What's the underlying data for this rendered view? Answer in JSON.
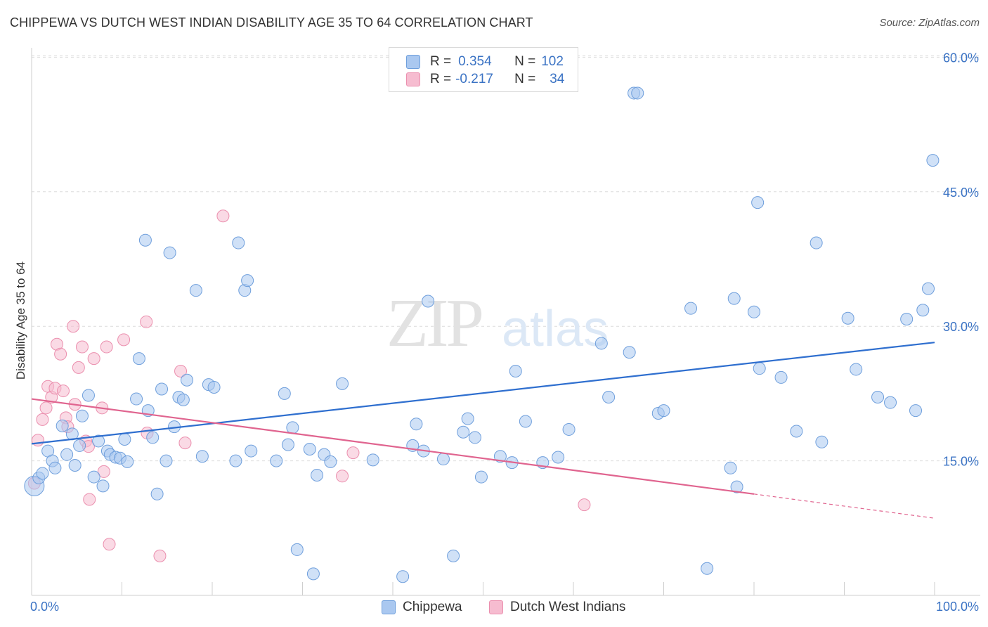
{
  "header": {
    "title": "CHIPPEWA VS DUTCH WEST INDIAN DISABILITY AGE 35 TO 64 CORRELATION CHART",
    "source": "Source: ZipAtlas.com"
  },
  "watermark": {
    "zip": "ZIP",
    "atlas": "atlas"
  },
  "legend_top": {
    "rows": [
      {
        "r_label": "R =",
        "r_value": "0.354",
        "n_label": "N =",
        "n_value": "102"
      },
      {
        "r_label": "R =",
        "r_value": "-0.217",
        "n_label": "N =",
        "n_value": "34"
      }
    ]
  },
  "legend_bottom": {
    "items": [
      "Chippewa",
      "Dutch West Indians"
    ]
  },
  "colors": {
    "blue_fill": "#aac8f0",
    "blue_stroke": "#6f9fdc",
    "blue_line": "#2f6fcf",
    "pink_fill": "#f6bcd0",
    "pink_stroke": "#eb8fae",
    "pink_line": "#e0648f",
    "tick_text": "#3b73c4",
    "grid": "#dcdcdc"
  },
  "chart_data": {
    "type": "scatter",
    "xlabel": "",
    "ylabel": "Disability Age 35 to 64",
    "xlim": [
      0,
      100
    ],
    "ylim": [
      0,
      60
    ],
    "x_tick_labels": [
      "0.0%",
      "100.0%"
    ],
    "y_ticks": [
      15,
      30,
      45,
      60
    ],
    "y_tick_labels": [
      "15.0%",
      "30.0%",
      "45.0%",
      "60.0%"
    ],
    "grid": "horizontal dashed",
    "series": [
      {
        "name": "Chippewa",
        "color": "#aac8f0",
        "trend": {
          "x": [
            0,
            100
          ],
          "y": [
            16.9,
            28.2
          ]
        },
        "points": [
          [
            0.3,
            12.2
          ],
          [
            0.8,
            13.1
          ],
          [
            1.2,
            13.6
          ],
          [
            1.8,
            16.1
          ],
          [
            2.3,
            15.0
          ],
          [
            2.6,
            14.2
          ],
          [
            3.4,
            18.9
          ],
          [
            3.9,
            15.7
          ],
          [
            4.5,
            18.0
          ],
          [
            4.8,
            14.5
          ],
          [
            5.3,
            16.7
          ],
          [
            5.6,
            20.0
          ],
          [
            6.3,
            22.3
          ],
          [
            6.9,
            13.2
          ],
          [
            7.4,
            17.2
          ],
          [
            7.9,
            12.2
          ],
          [
            8.4,
            16.1
          ],
          [
            8.7,
            15.7
          ],
          [
            9.3,
            15.4
          ],
          [
            9.8,
            15.3
          ],
          [
            10.3,
            17.4
          ],
          [
            10.6,
            14.9
          ],
          [
            11.6,
            21.9
          ],
          [
            11.9,
            26.4
          ],
          [
            12.6,
            39.6
          ],
          [
            12.9,
            20.6
          ],
          [
            13.4,
            17.6
          ],
          [
            13.9,
            11.3
          ],
          [
            14.4,
            23.0
          ],
          [
            14.9,
            15.0
          ],
          [
            15.3,
            38.2
          ],
          [
            15.8,
            18.8
          ],
          [
            16.3,
            22.1
          ],
          [
            16.8,
            21.8
          ],
          [
            17.2,
            24.0
          ],
          [
            18.2,
            34.0
          ],
          [
            18.9,
            15.5
          ],
          [
            19.6,
            23.5
          ],
          [
            20.2,
            23.2
          ],
          [
            22.6,
            15.0
          ],
          [
            22.9,
            39.3
          ],
          [
            23.6,
            34.0
          ],
          [
            23.9,
            35.1
          ],
          [
            24.3,
            16.1
          ],
          [
            27.1,
            15.0
          ],
          [
            28.0,
            22.5
          ],
          [
            28.4,
            16.8
          ],
          [
            28.9,
            18.7
          ],
          [
            29.4,
            5.1
          ],
          [
            30.8,
            16.3
          ],
          [
            31.2,
            2.4
          ],
          [
            31.6,
            13.4
          ],
          [
            32.4,
            15.7
          ],
          [
            33.1,
            14.9
          ],
          [
            34.4,
            23.6
          ],
          [
            37.8,
            15.1
          ],
          [
            41.1,
            2.1
          ],
          [
            42.2,
            16.7
          ],
          [
            42.6,
            19.1
          ],
          [
            43.4,
            16.1
          ],
          [
            43.9,
            32.8
          ],
          [
            45.6,
            15.2
          ],
          [
            46.7,
            4.4
          ],
          [
            47.8,
            18.2
          ],
          [
            48.3,
            19.7
          ],
          [
            49.1,
            17.6
          ],
          [
            49.8,
            13.2
          ],
          [
            51.9,
            15.5
          ],
          [
            53.2,
            14.8
          ],
          [
            53.6,
            25.0
          ],
          [
            54.7,
            19.4
          ],
          [
            56.6,
            14.8
          ],
          [
            58.3,
            15.4
          ],
          [
            59.5,
            18.5
          ],
          [
            63.1,
            28.1
          ],
          [
            63.9,
            22.1
          ],
          [
            66.2,
            27.1
          ],
          [
            66.7,
            56.0
          ],
          [
            67.1,
            56.0
          ],
          [
            69.4,
            20.3
          ],
          [
            70.0,
            20.6
          ],
          [
            73.0,
            32.0
          ],
          [
            74.8,
            3.0
          ],
          [
            77.4,
            14.2
          ],
          [
            77.8,
            33.1
          ],
          [
            78.1,
            12.1
          ],
          [
            80.0,
            31.6
          ],
          [
            80.4,
            43.8
          ],
          [
            80.6,
            25.3
          ],
          [
            83.0,
            24.3
          ],
          [
            84.7,
            18.3
          ],
          [
            86.9,
            39.3
          ],
          [
            87.5,
            17.1
          ],
          [
            90.4,
            30.9
          ],
          [
            91.3,
            25.2
          ],
          [
            93.7,
            22.1
          ],
          [
            95.1,
            21.5
          ],
          [
            96.9,
            30.8
          ],
          [
            97.9,
            20.6
          ],
          [
            98.7,
            31.8
          ],
          [
            99.3,
            34.2
          ],
          [
            99.8,
            48.5
          ]
        ]
      },
      {
        "name": "Dutch West Indians",
        "color": "#f6bcd0",
        "trend": {
          "x": [
            0,
            80
          ],
          "y": [
            21.9,
            11.3
          ]
        },
        "trend_dashed": {
          "x": [
            80,
            100
          ],
          "y": [
            11.3,
            8.6
          ]
        },
        "points": [
          [
            0.3,
            12.5
          ],
          [
            0.7,
            17.3
          ],
          [
            1.2,
            19.6
          ],
          [
            1.6,
            20.9
          ],
          [
            1.8,
            23.3
          ],
          [
            2.2,
            22.1
          ],
          [
            2.6,
            23.1
          ],
          [
            2.8,
            28.0
          ],
          [
            3.2,
            26.9
          ],
          [
            3.5,
            22.8
          ],
          [
            3.8,
            19.8
          ],
          [
            4.0,
            18.8
          ],
          [
            4.6,
            30.0
          ],
          [
            4.8,
            21.3
          ],
          [
            5.2,
            25.4
          ],
          [
            5.6,
            27.7
          ],
          [
            6.0,
            17.2
          ],
          [
            6.3,
            16.6
          ],
          [
            6.4,
            10.7
          ],
          [
            6.9,
            26.4
          ],
          [
            7.8,
            20.9
          ],
          [
            8.0,
            13.8
          ],
          [
            8.3,
            27.7
          ],
          [
            8.6,
            5.7
          ],
          [
            10.2,
            28.5
          ],
          [
            12.7,
            30.5
          ],
          [
            12.8,
            18.1
          ],
          [
            14.2,
            4.4
          ],
          [
            16.5,
            25.0
          ],
          [
            21.2,
            42.3
          ],
          [
            34.4,
            13.3
          ],
          [
            35.6,
            15.9
          ],
          [
            61.2,
            10.1
          ],
          [
            17.0,
            17.0
          ]
        ]
      }
    ]
  }
}
